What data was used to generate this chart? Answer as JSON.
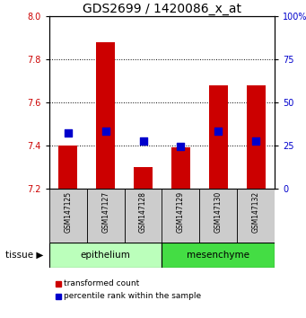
{
  "title": "GDS2699 / 1420086_x_at",
  "samples": [
    "GSM147125",
    "GSM147127",
    "GSM147128",
    "GSM147129",
    "GSM147130",
    "GSM147132"
  ],
  "bar_tops": [
    7.4,
    7.88,
    7.3,
    7.39,
    7.68,
    7.68
  ],
  "bar_bottom": 7.2,
  "blue_y": [
    7.46,
    7.465,
    7.42,
    7.395,
    7.465,
    7.42
  ],
  "ylim_left": [
    7.2,
    8.0
  ],
  "ylim_right": [
    0,
    100
  ],
  "yticks_left": [
    7.2,
    7.4,
    7.6,
    7.8,
    8.0
  ],
  "yticks_right": [
    0,
    25,
    50,
    75,
    100
  ],
  "bar_color": "#cc0000",
  "blue_color": "#0000cc",
  "group1_label": "epithelium",
  "group2_label": "mesenchyme",
  "group1_color": "#bbffbb",
  "group2_color": "#44dd44",
  "group1_indices": [
    0,
    1,
    2
  ],
  "group2_indices": [
    3,
    4,
    5
  ],
  "tissue_label": "tissue",
  "legend1": "transformed count",
  "legend2": "percentile rank within the sample",
  "title_fontsize": 10,
  "tick_label_color_left": "#cc0000",
  "tick_label_color_right": "#0000cc",
  "bar_width": 0.5,
  "blue_marker_size": 30,
  "sample_bg": "#cccccc"
}
